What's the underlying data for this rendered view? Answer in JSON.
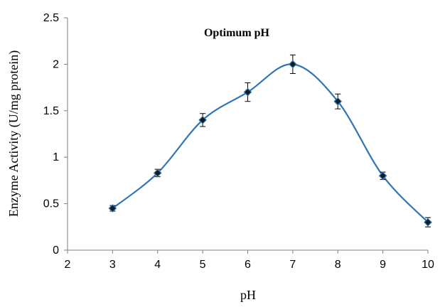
{
  "chart_data": {
    "type": "line",
    "title": "Optimum pH",
    "xlabel": "pH",
    "ylabel": "Enzyme Activity (U/mg protein)",
    "xlim": [
      2,
      10
    ],
    "ylim": [
      0,
      2.5
    ],
    "x_ticks": [
      "2",
      "3",
      "4",
      "5",
      "6",
      "7",
      "8",
      "9",
      "10"
    ],
    "y_ticks": [
      "0",
      "0.5",
      "1",
      "1.5",
      "2",
      "2.5"
    ],
    "grid": false,
    "smooth": true,
    "series": [
      {
        "x": [
          3,
          4,
          5,
          6,
          7,
          8,
          9,
          10
        ],
        "y": [
          0.45,
          0.83,
          1.4,
          1.7,
          2.0,
          1.6,
          0.8,
          0.3
        ],
        "error": [
          0.03,
          0.04,
          0.07,
          0.1,
          0.1,
          0.08,
          0.04,
          0.05
        ],
        "color": "#2e75b6",
        "marker_color": "#1a1a1a"
      }
    ]
  }
}
